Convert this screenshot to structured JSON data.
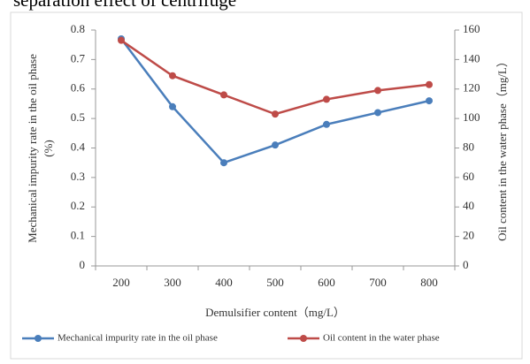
{
  "chart_data": {
    "type": "line",
    "title": "separation effect of centrifuge",
    "x_label": "Demulsifier content（mg/L）",
    "y_label": [
      "Mechanical impurity rate in the oil phase",
      "(%)"
    ],
    "y2_label": "Oil content in the water phase（mg/L）",
    "categories": [
      "200",
      "300",
      "400",
      "500",
      "600",
      "700",
      "800"
    ],
    "ylim": [
      0,
      0.8
    ],
    "yticks": [
      0,
      0.1,
      0.2,
      0.3,
      0.4,
      0.5,
      0.6,
      0.7,
      0.8
    ],
    "y2lim": [
      0,
      160
    ],
    "y2ticks": [
      0,
      20,
      40,
      60,
      80,
      100,
      120,
      140,
      160
    ],
    "grid": false,
    "series": [
      {
        "name": "Mechanical impurity rate in the oil phase",
        "color": "#4a7ebb",
        "values": [
          0.77,
          0.54,
          0.35,
          0.41,
          0.48,
          0.52,
          0.56
        ]
      },
      {
        "name": "Oil content in the water phase",
        "color": "#be4b48",
        "axis": "y2",
        "values": [
          153,
          129,
          116,
          103,
          113,
          119,
          123
        ]
      }
    ]
  }
}
